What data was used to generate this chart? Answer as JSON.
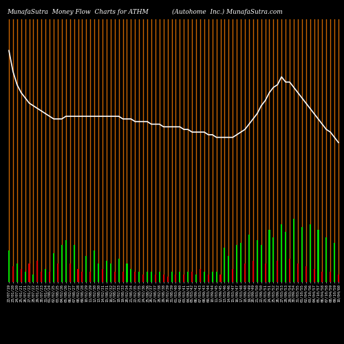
{
  "title_left": "MunafaSutra  Money Flow  Charts for ATHM",
  "title_right": "(Autohome  Inc.) MunafaSutra.com",
  "background_color": "#000000",
  "bar_stripe_color": "#CC6600",
  "bar_width": 0.35,
  "dates": [
    "22/07/19",
    "23/01/20",
    "24/07/20",
    "25/01/21",
    "26/07/21",
    "27/01/22",
    "28/07/22",
    "29/01/23",
    "30/07/23",
    "31/01/24",
    "01/08/24",
    "02/02/25",
    "03/08/25",
    "04/02/26",
    "05/08/26",
    "06/02/27",
    "07/08/27",
    "08/02/28",
    "09/08/28",
    "10/02/29",
    "11/08/29",
    "12/02/30",
    "13/08/30",
    "14/02/31",
    "15/08/31",
    "16/02/32",
    "17/08/32",
    "18/02/33",
    "19/08/33",
    "20/02/34",
    "21/08/34",
    "22/02/35",
    "23/08/35",
    "24/02/36",
    "25/08/36",
    "26/02/37",
    "27/08/37",
    "28/02/38",
    "29/08/38",
    "30/02/39",
    "31/08/39",
    "01/03/40",
    "02/09/40",
    "03/03/41",
    "04/09/41",
    "05/03/42",
    "06/09/42",
    "07/03/43",
    "08/09/43",
    "09/03/44",
    "10/09/44",
    "11/03/45",
    "12/09/45",
    "13/03/46",
    "14/09/46",
    "15/03/47",
    "16/09/47",
    "17/03/48",
    "18/09/48",
    "19/03/49",
    "20/09/49",
    "21/03/50",
    "22/09/50",
    "23/03/51",
    "24/09/51",
    "25/03/52",
    "26/09/52",
    "27/03/53",
    "28/09/53",
    "29/03/54",
    "30/09/54",
    "31/03/55",
    "01/10/55",
    "02/04/56",
    "03/10/56",
    "04/04/57",
    "05/10/57",
    "06/04/58",
    "07/10/58",
    "08/04/59",
    "09/10/59",
    "10/04/60"
  ],
  "bar_colors": [
    "green",
    "red",
    "green",
    "red",
    "green",
    "red",
    "green",
    "red",
    "red",
    "green",
    "red",
    "green",
    "red",
    "green",
    "green",
    "red",
    "green",
    "red",
    "red",
    "green",
    "red",
    "green",
    "green",
    "red",
    "green",
    "green",
    "red",
    "green",
    "red",
    "green",
    "green",
    "red",
    "green",
    "red",
    "green",
    "green",
    "red",
    "green",
    "red",
    "red",
    "green",
    "red",
    "green",
    "red",
    "green",
    "red",
    "green",
    "red",
    "green",
    "red",
    "green",
    "green",
    "red",
    "green",
    "green",
    "red",
    "green",
    "green",
    "red",
    "green",
    "red",
    "green",
    "green",
    "red",
    "green",
    "green",
    "red",
    "green",
    "green",
    "red",
    "green",
    "red",
    "green",
    "red",
    "green",
    "red",
    "green",
    "red",
    "green",
    "red",
    "green",
    "red"
  ],
  "bar_heights": [
    0.12,
    0.06,
    0.07,
    0.05,
    0.04,
    0.07,
    0.03,
    0.08,
    0.04,
    0.05,
    0.04,
    0.11,
    0.07,
    0.14,
    0.16,
    0.07,
    0.14,
    0.05,
    0.04,
    0.1,
    0.04,
    0.12,
    0.07,
    0.05,
    0.08,
    0.07,
    0.04,
    0.09,
    0.04,
    0.07,
    0.05,
    0.04,
    0.04,
    0.03,
    0.04,
    0.04,
    0.03,
    0.04,
    0.03,
    0.02,
    0.04,
    0.03,
    0.04,
    0.03,
    0.04,
    0.04,
    0.03,
    0.05,
    0.04,
    0.03,
    0.04,
    0.04,
    0.03,
    0.13,
    0.1,
    0.05,
    0.14,
    0.15,
    0.07,
    0.18,
    0.08,
    0.16,
    0.14,
    0.07,
    0.2,
    0.17,
    0.08,
    0.22,
    0.19,
    0.09,
    0.24,
    0.07,
    0.21,
    0.06,
    0.22,
    0.05,
    0.2,
    0.04,
    0.17,
    0.04,
    0.15,
    0.03
  ],
  "line_values": [
    0.88,
    0.8,
    0.75,
    0.72,
    0.7,
    0.68,
    0.67,
    0.66,
    0.65,
    0.64,
    0.63,
    0.62,
    0.62,
    0.62,
    0.63,
    0.63,
    0.63,
    0.63,
    0.63,
    0.63,
    0.63,
    0.63,
    0.63,
    0.63,
    0.63,
    0.63,
    0.63,
    0.63,
    0.62,
    0.62,
    0.62,
    0.61,
    0.61,
    0.61,
    0.61,
    0.6,
    0.6,
    0.6,
    0.59,
    0.59,
    0.59,
    0.59,
    0.59,
    0.58,
    0.58,
    0.57,
    0.57,
    0.57,
    0.57,
    0.56,
    0.56,
    0.55,
    0.55,
    0.55,
    0.55,
    0.55,
    0.56,
    0.57,
    0.58,
    0.6,
    0.62,
    0.64,
    0.67,
    0.69,
    0.72,
    0.74,
    0.75,
    0.78,
    0.76,
    0.76,
    0.74,
    0.72,
    0.7,
    0.68,
    0.66,
    0.64,
    0.62,
    0.6,
    0.58,
    0.57,
    0.55,
    0.53
  ],
  "ylim": [
    0,
    1.0
  ],
  "title_fontsize": 6.5,
  "tick_fontsize": 4.0,
  "line_color": "#ffffff",
  "line_width": 1.2,
  "stripe_linewidth": 1.0
}
